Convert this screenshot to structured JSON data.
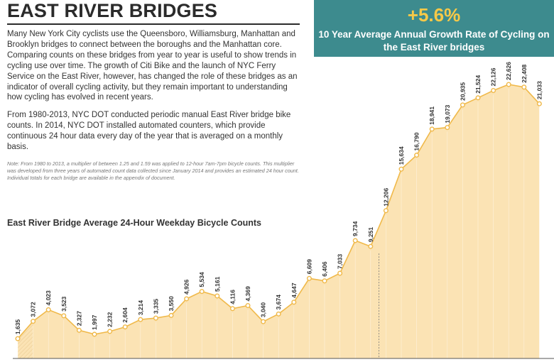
{
  "header": {
    "title": "EAST RIVER BRIDGES"
  },
  "intro": {
    "paragraph1": "Many New York City cyclists use the Queensboro, Williamsburg, Manhattan and Brooklyn bridges to connect between the boroughs and the Manhattan core. Comparing counts on these bridges from year to year is useful to show trends in cycling use over time. The growth of Citi Bike and the launch of NYC Ferry Service on the East River, however, has changed the role of these bridges as an indicator of overall cycling activity, but they remain important to understanding how cycling has evolved in recent years.",
    "paragraph2": "From 1980-2013, NYC DOT conducted periodic manual East River bridge bike counts. In 2014, NYC DOT installed automated counters, which provide continuous 24 hour data every day of the year that is averaged on a monthly basis.",
    "note": "Note: From 1980 to 2013, a multiplier of between 1.25 and 1.59 was applied to 12-hour 7am-7pm bicycle counts. This multiplier was developed from three years of automated count data collected since January 2014 and provides an estimated 24 hour count. Individual totals for each bridge are available in the appendix of document."
  },
  "stat": {
    "value": "+5.6%",
    "label": "10 Year Average Annual Growth Rate of Cycling on the East River bridges"
  },
  "colors": {
    "teal": "#3d8b8e",
    "accent": "#f7c948",
    "area": "#fbe3b4",
    "line": "#f0b94a"
  },
  "chart_data": {
    "type": "area",
    "title": "East River Bridge Average 24-Hour Weekday Bicycle Counts",
    "xlabel": "",
    "ylabel": "",
    "ylim": [
      0,
      23500
    ],
    "grid": false,
    "values": [
      1635,
      3072,
      4023,
      3523,
      2327,
      1997,
      2232,
      2604,
      3214,
      3335,
      3550,
      4926,
      5534,
      5161,
      4116,
      4369,
      3040,
      3674,
      4647,
      6609,
      6406,
      7033,
      9734,
      9251,
      12206,
      15634,
      16790,
      18941,
      19073,
      20935,
      21524,
      22126,
      22626,
      22408,
      21033
    ],
    "labels": [
      "1,635",
      "3,072",
      "4,023",
      "3,523",
      "2,327",
      "1,997",
      "2,232",
      "2,604",
      "3,214",
      "3,335",
      "3,550",
      "4,926",
      "5,534",
      "5,161",
      "4,116",
      "4,369",
      "3,040",
      "3,674",
      "4,647",
      "6,609",
      "6,406",
      "7,033",
      "9,734",
      "9,251",
      "12,206",
      "15,634",
      "16,790",
      "18,941",
      "19,073",
      "20,935",
      "21,524",
      "22,126",
      "22,626",
      "22,408",
      "21,033"
    ],
    "annotations": [
      "dashed divider between manual counts and automated counters"
    ]
  }
}
